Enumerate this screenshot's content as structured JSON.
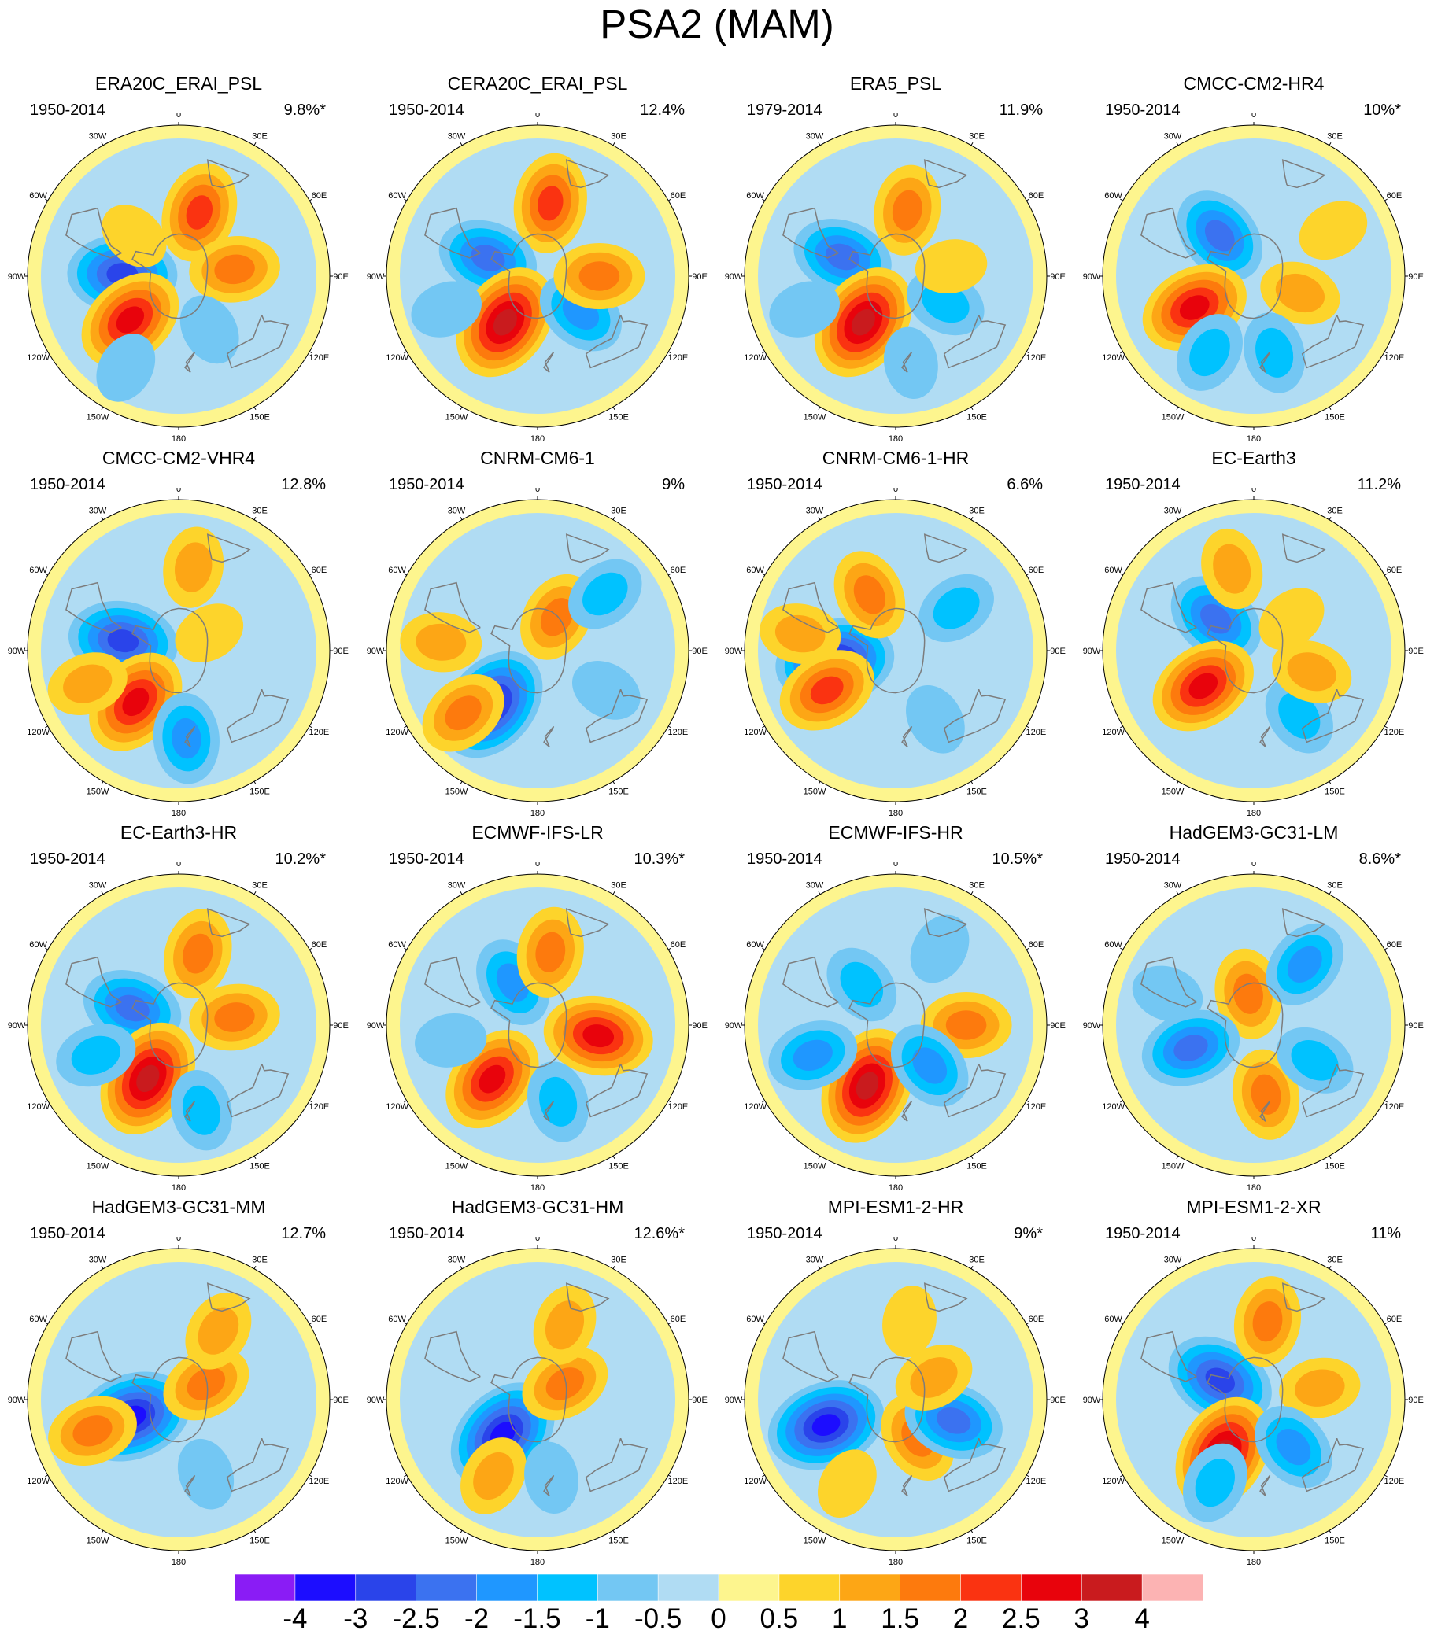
{
  "title": "PSA2 (MAM)",
  "longitude_labels": [
    "0",
    "30E",
    "60E",
    "90E",
    "120E",
    "150E",
    "180",
    "150W",
    "120W",
    "90W",
    "60W",
    "30W"
  ],
  "panels": [
    {
      "name": "ERA20C_ERAI_PSL",
      "period": "1950-2014",
      "variance": "9.8%*",
      "anomalies": [
        {
          "lat": -52,
          "lon": 18,
          "v": 2
        },
        {
          "lat": -58,
          "lon": -88,
          "v": -2.5
        },
        {
          "lat": -53,
          "lon": -132,
          "v": 2.5
        },
        {
          "lat": -58,
          "lon": 83,
          "v": 1.5
        },
        {
          "lat": -55,
          "lon": 150,
          "v": -0.5
        },
        {
          "lat": -56,
          "lon": -48,
          "v": 0.5
        },
        {
          "lat": -30,
          "lon": -150,
          "v": -0.5
        }
      ]
    },
    {
      "name": "CERA20C_ERAI_PSL",
      "period": "1950-2014",
      "variance": "12.4%",
      "anomalies": [
        {
          "lat": -48,
          "lon": 10,
          "v": 2
        },
        {
          "lat": -60,
          "lon": -70,
          "v": -2
        },
        {
          "lat": -58,
          "lon": -145,
          "v": 3
        },
        {
          "lat": -58,
          "lon": 130,
          "v": -1.5
        },
        {
          "lat": -55,
          "lon": 90,
          "v": 1.5
        },
        {
          "lat": -35,
          "lon": -110,
          "v": -0.5
        }
      ]
    },
    {
      "name": "ERA5_PSL",
      "period": "1979-2014",
      "variance": "11.9%",
      "anomalies": [
        {
          "lat": -52,
          "lon": 10,
          "v": 1.5
        },
        {
          "lat": -58,
          "lon": -70,
          "v": -2
        },
        {
          "lat": -58,
          "lon": -145,
          "v": 3
        },
        {
          "lat": -58,
          "lon": 118,
          "v": -1
        },
        {
          "lat": -58,
          "lon": 80,
          "v": 0.5
        },
        {
          "lat": -35,
          "lon": -110,
          "v": -0.5
        },
        {
          "lat": -40,
          "lon": 170,
          "v": -0.5
        }
      ]
    },
    {
      "name": "CMCC-CM2-HR4",
      "period": "1950-2014",
      "variance": "10%*",
      "anomalies": [
        {
          "lat": -60,
          "lon": -40,
          "v": -2
        },
        {
          "lat": -52,
          "lon": -118,
          "v": 2.5
        },
        {
          "lat": -62,
          "lon": 110,
          "v": 1
        },
        {
          "lat": -40,
          "lon": -150,
          "v": -1
        },
        {
          "lat": -45,
          "lon": 165,
          "v": -1
        },
        {
          "lat": -38,
          "lon": 60,
          "v": 0.5
        }
      ]
    },
    {
      "name": "CMCC-CM2-VHR4",
      "period": "1950-2014",
      "variance": "12.8%",
      "anomalies": [
        {
          "lat": -58,
          "lon": -80,
          "v": -2.5
        },
        {
          "lat": -52,
          "lon": -140,
          "v": 2.5
        },
        {
          "lat": -42,
          "lon": 10,
          "v": 1
        },
        {
          "lat": -40,
          "lon": 175,
          "v": -1.5
        },
        {
          "lat": -70,
          "lon": 60,
          "v": 0.5
        },
        {
          "lat": -35,
          "lon": -110,
          "v": 1
        }
      ]
    },
    {
      "name": "CNRM-CM6-1",
      "period": "1950-2014",
      "variance": "9%",
      "anomalies": [
        {
          "lat": -50,
          "lon": -140,
          "v": -3
        },
        {
          "lat": -68,
          "lon": 30,
          "v": 1.5
        },
        {
          "lat": -40,
          "lon": 50,
          "v": -1
        },
        {
          "lat": -35,
          "lon": -130,
          "v": 1.5
        },
        {
          "lat": -45,
          "lon": 120,
          "v": -0.5
        },
        {
          "lat": -35,
          "lon": -85,
          "v": 1
        }
      ]
    },
    {
      "name": "CNRM-CM6-1-HR",
      "period": "1950-2014",
      "variance": "6.6%",
      "anomalies": [
        {
          "lat": -55,
          "lon": -100,
          "v": -3
        },
        {
          "lat": -45,
          "lon": -120,
          "v": 2
        },
        {
          "lat": -55,
          "lon": -25,
          "v": 1.5
        },
        {
          "lat": -48,
          "lon": 55,
          "v": -1
        },
        {
          "lat": -45,
          "lon": 150,
          "v": -0.5
        },
        {
          "lat": -35,
          "lon": -80,
          "v": 1
        }
      ]
    },
    {
      "name": "EC-Earth3",
      "period": "1950-2014",
      "variance": "11.2%",
      "anomalies": [
        {
          "lat": -62,
          "lon": -50,
          "v": -2
        },
        {
          "lat": -55,
          "lon": -125,
          "v": 2.5
        },
        {
          "lat": -42,
          "lon": -15,
          "v": 1
        },
        {
          "lat": -45,
          "lon": 145,
          "v": -1
        },
        {
          "lat": -55,
          "lon": 110,
          "v": 1
        },
        {
          "lat": -62,
          "lon": 50,
          "v": 0.5
        }
      ]
    },
    {
      "name": "EC-Earth3-HR",
      "period": "1950-2014",
      "variance": "10.2%*",
      "anomalies": [
        {
          "lat": -62,
          "lon": -70,
          "v": -2
        },
        {
          "lat": -55,
          "lon": -150,
          "v": 3
        },
        {
          "lat": -48,
          "lon": 15,
          "v": 1.5
        },
        {
          "lat": -58,
          "lon": 82,
          "v": 1.5
        },
        {
          "lat": -40,
          "lon": 165,
          "v": -1
        },
        {
          "lat": -40,
          "lon": -110,
          "v": -1
        }
      ]
    },
    {
      "name": "ECMWF-IFS-LR",
      "period": "1950-2014",
      "variance": "10.3%*",
      "anomalies": [
        {
          "lat": -62,
          "lon": -30,
          "v": -1.5
        },
        {
          "lat": -50,
          "lon": -140,
          "v": 2.5
        },
        {
          "lat": -55,
          "lon": 100,
          "v": 2.5
        },
        {
          "lat": -48,
          "lon": 10,
          "v": 1.5
        },
        {
          "lat": -45,
          "lon": 165,
          "v": -1
        },
        {
          "lat": -40,
          "lon": -100,
          "v": -0.5
        }
      ]
    },
    {
      "name": "ECMWF-IFS-HR",
      "period": "1950-2014",
      "variance": "10.5%*",
      "anomalies": [
        {
          "lat": -52,
          "lon": -155,
          "v": 3
        },
        {
          "lat": -50,
          "lon": 90,
          "v": 1.5
        },
        {
          "lat": -60,
          "lon": 140,
          "v": -1.5
        },
        {
          "lat": -40,
          "lon": -110,
          "v": -1.5
        },
        {
          "lat": -60,
          "lon": -40,
          "v": -1
        },
        {
          "lat": -40,
          "lon": 30,
          "v": -0.5
        }
      ]
    },
    {
      "name": "HadGEM3-GC31-LM",
      "period": "1950-2014",
      "variance": "8.6%*",
      "anomalies": [
        {
          "lat": -72,
          "lon": -10,
          "v": 1.5
        },
        {
          "lat": -52,
          "lon": -110,
          "v": -2
        },
        {
          "lat": -50,
          "lon": 170,
          "v": 1.5
        },
        {
          "lat": -45,
          "lon": 40,
          "v": -1.5
        },
        {
          "lat": -50,
          "lon": 120,
          "v": -1
        },
        {
          "lat": -38,
          "lon": -70,
          "v": -0.5
        }
      ]
    },
    {
      "name": "HadGEM3-GC31-MM",
      "period": "1950-2014",
      "variance": "12.7%",
      "anomalies": [
        {
          "lat": -62,
          "lon": -110,
          "v": -3
        },
        {
          "lat": -72,
          "lon": 60,
          "v": 1.5
        },
        {
          "lat": -38,
          "lon": -110,
          "v": 1.5
        },
        {
          "lat": -45,
          "lon": 30,
          "v": 1
        },
        {
          "lat": -45,
          "lon": 160,
          "v": -0.5
        }
      ]
    },
    {
      "name": "HadGEM3-GC31-HM",
      "period": "1950-2014",
      "variance": "12.6%*",
      "anomalies": [
        {
          "lat": -62,
          "lon": -135,
          "v": -3
        },
        {
          "lat": -72,
          "lon": 60,
          "v": 1.5
        },
        {
          "lat": -40,
          "lon": -150,
          "v": 1
        },
        {
          "lat": -45,
          "lon": 20,
          "v": 1
        },
        {
          "lat": -45,
          "lon": 170,
          "v": -0.5
        }
      ]
    },
    {
      "name": "MPI-ESM1-2-HR",
      "period": "1950-2014",
      "variance": "9%*",
      "anomalies": [
        {
          "lat": -48,
          "lon": -110,
          "v": -3
        },
        {
          "lat": -65,
          "lon": 150,
          "v": 1.5
        },
        {
          "lat": -55,
          "lon": 110,
          "v": -2
        },
        {
          "lat": -65,
          "lon": 60,
          "v": 1
        },
        {
          "lat": -45,
          "lon": 10,
          "v": 0.5
        },
        {
          "lat": -35,
          "lon": -150,
          "v": 0.5
        }
      ]
    },
    {
      "name": "MPI-ESM1-2-XR",
      "period": "1950-2014",
      "variance": "11%",
      "anomalies": [
        {
          "lat": -68,
          "lon": -60,
          "v": -2.5
        },
        {
          "lat": -55,
          "lon": -150,
          "v": 3
        },
        {
          "lat": -45,
          "lon": 10,
          "v": 1.5
        },
        {
          "lat": -52,
          "lon": 80,
          "v": 1
        },
        {
          "lat": -55,
          "lon": 140,
          "v": -1.5
        },
        {
          "lat": -38,
          "lon": -155,
          "v": -1
        }
      ]
    }
  ],
  "colorbar": {
    "labels": [
      "-4",
      "-3",
      "-2.5",
      "-2",
      "-1.5",
      "-1",
      "-0.5",
      "0",
      "0.5",
      "1",
      "1.5",
      "2",
      "2.5",
      "3",
      "4"
    ],
    "colors": [
      "#8a1cf5",
      "#1c0dff",
      "#2a44ea",
      "#3b72f0",
      "#1f97ff",
      "#00c2ff",
      "#73c7f3",
      "#b0dcf3",
      "#fdf58e",
      "#fdd42b",
      "#fda615",
      "#fd7a0d",
      "#fa3311",
      "#e8030c",
      "#c91b1e",
      "#fcb3b3"
    ]
  }
}
